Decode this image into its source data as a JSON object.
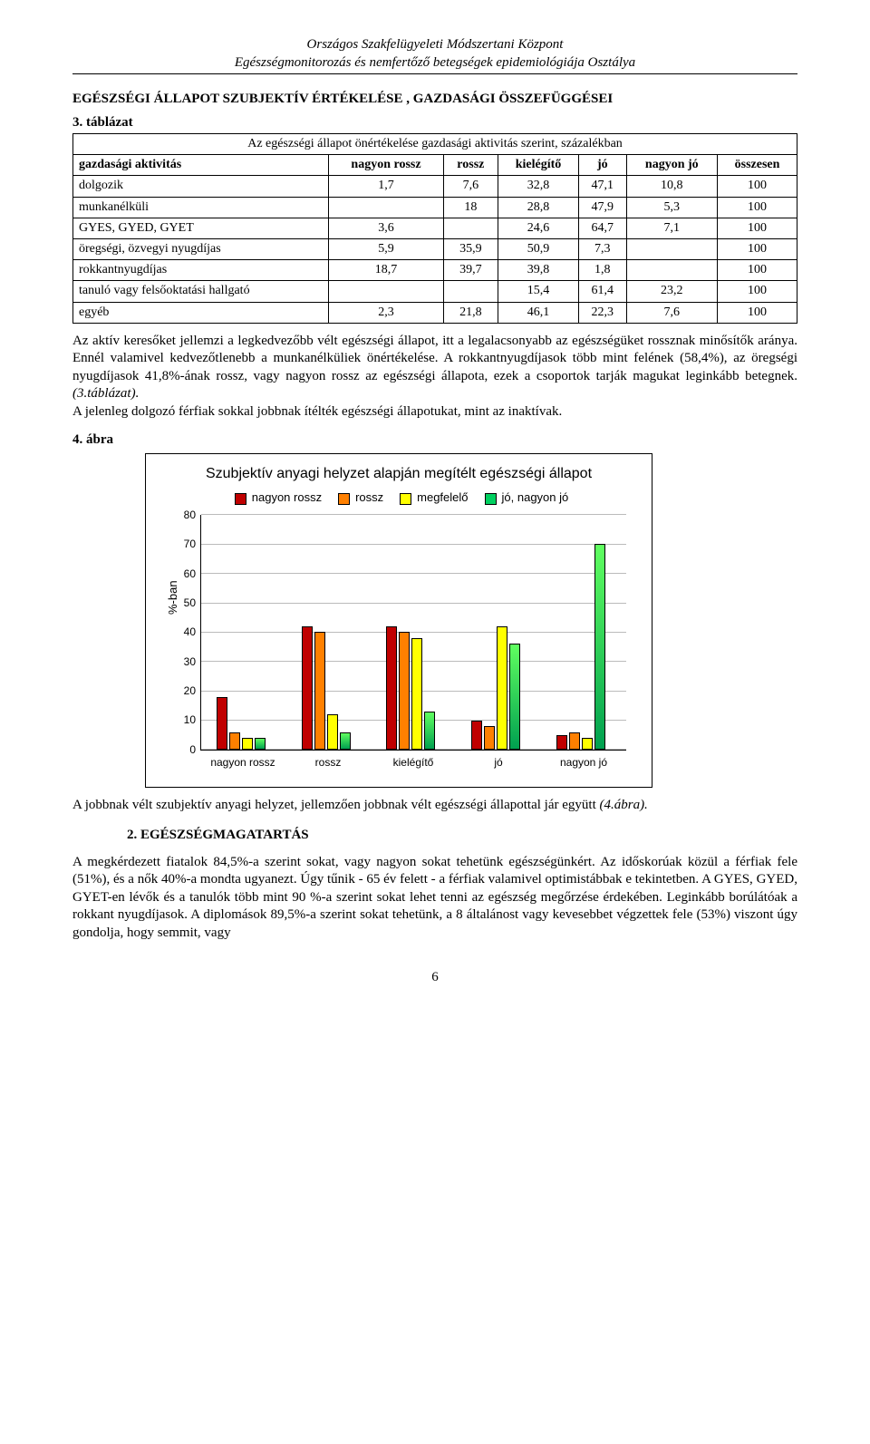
{
  "header": {
    "line1": "Országos Szakfelügyeleti Módszertani Központ",
    "line2": "Egészségmonitorozás és nemfertőző betegségek epidemiológiája Osztálya"
  },
  "section_title": "EGÉSZSÉGI ÁLLAPOT SZUBJEKTÍV ÉRTÉKELÉSE , GAZDASÁGI ÖSSZEFÜGGÉSEI",
  "table": {
    "label": "3. táblázat",
    "caption": "Az egészségi állapot önértékelése gazdasági aktivitás szerint, százalékban",
    "col_header_left": "gazdasági aktivitás",
    "columns": [
      "nagyon rossz",
      "rossz",
      "kielégítő",
      "jó",
      "nagyon jó",
      "összesen"
    ],
    "rows": [
      {
        "label": "dolgozik",
        "cells": [
          "1,7",
          "7,6",
          "32,8",
          "47,1",
          "10,8",
          "100"
        ]
      },
      {
        "label": "munkanélküli",
        "cells": [
          "",
          "18",
          "28,8",
          "47,9",
          "5,3",
          "100"
        ]
      },
      {
        "label": "GYES, GYED, GYET",
        "cells": [
          "3,6",
          "",
          "24,6",
          "64,7",
          "7,1",
          "100"
        ]
      },
      {
        "label": "öregségi, özvegyi nyugdíjas",
        "cells": [
          "5,9",
          "35,9",
          "50,9",
          "7,3",
          "",
          "100"
        ]
      },
      {
        "label": "rokkantnyugdíjas",
        "cells": [
          "18,7",
          "39,7",
          "39,8",
          "1,8",
          "",
          "100"
        ]
      },
      {
        "label": "tanuló vagy felsőoktatási hallgató",
        "cells": [
          "",
          "",
          "15,4",
          "61,4",
          "23,2",
          "100"
        ]
      },
      {
        "label": "egyéb",
        "cells": [
          "2,3",
          "21,8",
          "46,1",
          "22,3",
          "7,6",
          "100"
        ]
      }
    ]
  },
  "para1": "Az aktív keresőket jellemzi a legkedvezőbb vélt egészségi állapot, itt a legalacsonyabb az egészségüket rossznak minősítők aránya. Ennél valamivel kedvezőtlenebb a munkanélküliek önértékelése. A rokkantnyugdíjasok több mint felének (58,4%), az öregségi nyugdíjasok 41,8%-ának rossz, vagy nagyon rossz az egészségi állapota, ezek a csoportok tarják magukat leginkább betegnek. ",
  "para1_ital": "(3.táblázat).",
  "para1b": "A jelenleg dolgozó férfiak sokkal jobbnak ítélték egészségi állapotukat, mint az inaktívak.",
  "fig_label": "4. ábra",
  "chart": {
    "title": "Szubjektív anyagi helyzet alapján megítélt egészségi állapot",
    "y_axis_title": "%-ban",
    "ylim": [
      0,
      80
    ],
    "ytick_step": 10,
    "legend": [
      {
        "label": "nagyon rossz",
        "color": "#c00000"
      },
      {
        "label": "rossz",
        "color": "#ff8000"
      },
      {
        "label": "megfelelő",
        "color": "#ffff00"
      },
      {
        "label": "jó, nagyon jó",
        "color": "#00d060"
      }
    ],
    "categories": [
      "nagyon rossz",
      "rossz",
      "kielégítő",
      "jó",
      "nagyon jó"
    ],
    "series_colors": [
      "#c00000",
      "#ff8000",
      "#ffff00",
      "#00d060"
    ],
    "gradient_last_bar": true,
    "data": [
      [
        18,
        6,
        4,
        4
      ],
      [
        42,
        40,
        12,
        6
      ],
      [
        42,
        40,
        38,
        13
      ],
      [
        10,
        8,
        42,
        36
      ],
      [
        5,
        6,
        4,
        70
      ]
    ],
    "grid_color": "#bbbbbb",
    "background_color": "#ffffff"
  },
  "para2_a": "A jobbnak vélt szubjektív anyagi helyzet, jellemzően jobbnak vélt egészségi állapottal jár együtt ",
  "para2_ital": "(4.ábra).",
  "subheading_num": "2.",
  "subheading_text": "EGÉSZSÉGMAGATARTÁS",
  "para3": "A megkérdezett fiatalok 84,5%-a szerint sokat, vagy nagyon sokat tehetünk egészségünkért. Az időskorúak közül a férfiak fele (51%), és a nők 40%-a mondta ugyanezt. Úgy tűnik - 65 év felett - a férfiak valamivel optimistábbak e tekintetben. A GYES, GYED, GYET-en lévők és a tanulók több mint 90 %-a szerint sokat lehet tenni az egészség megőrzése érdekében. Leginkább borúlátóak a rokkant nyugdíjasok. A diplomások 89,5%-a szerint sokat tehetünk, a 8 általánost vagy kevesebbet végzettek fele (53%) viszont úgy gondolja, hogy semmit, vagy",
  "page_number": "6"
}
